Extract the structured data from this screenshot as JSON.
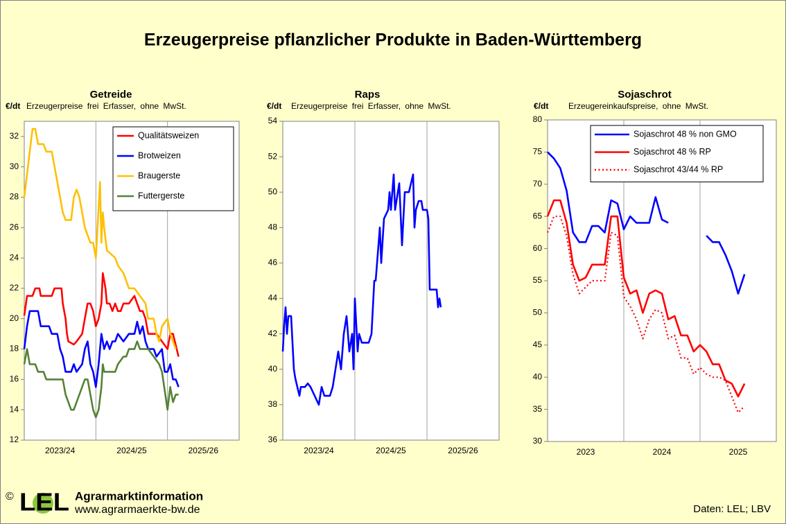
{
  "header": {
    "title": "Erzeugerpreise pflanzlicher Produkte in Baden-Württemberg"
  },
  "footer": {
    "copyright": "©",
    "logo": "LEL",
    "brand": "Agrarmarktinformation",
    "url": "www.agrarmaerkte-bw.de",
    "source": "Daten: LEL; LBV"
  },
  "chart_data": [
    {
      "type": "line",
      "title": "Getreide",
      "ylabel": "€/dt",
      "subtitle": "Erzeugerpreise frei Erfasser, ohne MwSt.",
      "xlim": [
        0,
        156
      ],
      "xticks": [
        {
          "value": 26,
          "label": "2023/24"
        },
        {
          "value": 78,
          "label": "2024/25"
        },
        {
          "value": 130,
          "label": "2025/26"
        }
      ],
      "xgrid": [
        52,
        104
      ],
      "ylim": [
        12,
        33
      ],
      "yticks": [
        12,
        14,
        16,
        18,
        20,
        22,
        24,
        26,
        28,
        30,
        32
      ],
      "legend": "upper right",
      "series": [
        {
          "name": "Qualitätsweizen",
          "color": "#ff0000",
          "x": [
            0,
            2,
            6,
            8,
            11,
            12,
            20,
            22,
            27,
            28,
            30,
            31,
            32,
            36,
            38,
            42,
            44,
            46,
            48,
            50,
            52,
            54,
            56,
            57,
            59,
            60,
            62,
            64,
            66,
            68,
            70,
            72,
            76,
            80,
            82,
            84,
            86,
            88,
            90,
            94,
            96,
            100,
            104,
            106,
            108,
            112
          ],
          "values": [
            20.2,
            21.5,
            21.5,
            22,
            22,
            21.5,
            21.5,
            22,
            22,
            21,
            20,
            19,
            18.5,
            18.3,
            18.5,
            19,
            20,
            21,
            21,
            20.5,
            19.5,
            20,
            21,
            23,
            22,
            21,
            21,
            20.5,
            21,
            20.5,
            20.5,
            21,
            21,
            21.5,
            21,
            20.5,
            20.5,
            20,
            19,
            19,
            19,
            18.5,
            18,
            19,
            19,
            17.5
          ]
        },
        {
          "name": "Brotweizen",
          "color": "#0000ff",
          "x": [
            0,
            2,
            4,
            10,
            12,
            18,
            20,
            24,
            26,
            28,
            30,
            34,
            36,
            38,
            42,
            44,
            46,
            48,
            50,
            52,
            54,
            56,
            58,
            60,
            62,
            64,
            66,
            68,
            72,
            76,
            80,
            82,
            84,
            86,
            88,
            90,
            94,
            96,
            100,
            102,
            104,
            106,
            108,
            110,
            112
          ],
          "values": [
            18,
            19.5,
            20.5,
            20.5,
            19.5,
            19.5,
            19,
            19,
            18,
            17.5,
            16.5,
            16.5,
            17,
            16.5,
            17,
            18,
            18.5,
            17,
            16.5,
            15.5,
            17,
            19,
            18,
            18.5,
            18,
            18.5,
            18.5,
            19,
            18.5,
            19,
            19,
            19.8,
            19,
            19.5,
            18.5,
            18,
            18,
            17.5,
            18,
            16.5,
            16.5,
            17,
            16,
            16,
            15.5
          ]
        },
        {
          "name": "Braugerste",
          "color": "#ffc000",
          "x": [
            0,
            2,
            4,
            6,
            8,
            10,
            14,
            16,
            20,
            22,
            24,
            26,
            28,
            30,
            34,
            36,
            38,
            40,
            42,
            44,
            46,
            48,
            50,
            52,
            55,
            56,
            57,
            58,
            60,
            66,
            68,
            72,
            76,
            80,
            84,
            88,
            90,
            94,
            96,
            98,
            100,
            104,
            106,
            108,
            110
          ],
          "values": [
            28,
            29.5,
            31,
            32.5,
            32.5,
            31.5,
            31.5,
            31,
            31,
            30,
            29,
            28,
            27,
            26.5,
            26.5,
            28,
            28.5,
            28,
            27,
            26,
            25.5,
            25,
            25,
            24,
            29,
            25,
            27,
            26,
            24.5,
            24,
            23.5,
            23,
            22,
            22,
            21.5,
            21,
            20,
            20,
            19,
            18.5,
            19.5,
            20,
            19,
            18.5,
            18
          ]
        },
        {
          "name": "Futtergerste",
          "color": "#548235",
          "x": [
            0,
            2,
            4,
            8,
            10,
            14,
            16,
            28,
            30,
            32,
            34,
            36,
            38,
            40,
            42,
            44,
            46,
            48,
            50,
            52,
            54,
            56,
            57,
            58,
            60,
            66,
            68,
            72,
            74,
            76,
            80,
            82,
            84,
            90,
            94,
            98,
            100,
            104,
            106,
            108,
            110,
            112
          ],
          "values": [
            17,
            18,
            17,
            17,
            16.5,
            16.5,
            16,
            16,
            15,
            14.5,
            14,
            14,
            14.5,
            15,
            15.5,
            16,
            16,
            15,
            14,
            13.5,
            14,
            15.5,
            17,
            16.5,
            16.5,
            16.5,
            17,
            17.5,
            17.5,
            18,
            18,
            18.5,
            18,
            18,
            17.5,
            17,
            16.5,
            14,
            15.5,
            14.5,
            15,
            15
          ]
        }
      ]
    },
    {
      "type": "line",
      "title": "Raps",
      "ylabel": "€/dt",
      "subtitle": "Erzeugerpreise frei Erfasser, ohne MwSt.",
      "xlim": [
        0,
        156
      ],
      "xticks": [
        {
          "value": 26,
          "label": "2023/24"
        },
        {
          "value": 78,
          "label": "2024/25"
        },
        {
          "value": 130,
          "label": "2025/26"
        }
      ],
      "xgrid": [
        52,
        104
      ],
      "ylim": [
        36,
        54
      ],
      "yticks": [
        36,
        38,
        40,
        42,
        44,
        46,
        48,
        50,
        52,
        54
      ],
      "series": [
        {
          "color": "#0000ff",
          "x": [
            0,
            1,
            2,
            3,
            4,
            6,
            8,
            9,
            12,
            13,
            16,
            18,
            20,
            26,
            28,
            30,
            34,
            36,
            38,
            40,
            42,
            44,
            46,
            48,
            50,
            51,
            52,
            54,
            55,
            57,
            62,
            64,
            66,
            67,
            70,
            71,
            73,
            76,
            77,
            78,
            80,
            81,
            84,
            86,
            88,
            91,
            94,
            95,
            96,
            98,
            100,
            101,
            104,
            105,
            106,
            111,
            112,
            113,
            114
          ],
          "values": [
            41,
            42.5,
            43.5,
            42,
            43,
            43,
            40,
            39.5,
            38.5,
            39,
            39,
            39.2,
            39,
            38,
            39,
            38.5,
            38.5,
            39,
            40,
            41,
            40,
            42,
            43,
            41,
            42,
            40,
            44,
            41,
            42,
            41.5,
            41.5,
            42,
            45,
            45,
            48,
            46,
            48.5,
            49,
            50,
            49,
            51,
            49,
            50.5,
            47,
            50,
            50,
            51,
            48,
            49,
            49.5,
            49.5,
            49,
            49,
            48.5,
            44.5,
            44.5,
            43.5,
            44,
            43.5
          ]
        }
      ]
    },
    {
      "type": "line",
      "title": "Sojaschrot",
      "ylabel": "€/dt",
      "subtitle": "Erzeugereinkaufspreise, ohne MwSt.",
      "xlim": [
        0,
        36
      ],
      "xticks": [
        {
          "value": 6,
          "label": "2023"
        },
        {
          "value": 18,
          "label": "2024"
        },
        {
          "value": 30,
          "label": "2025"
        }
      ],
      "xgrid": [
        12,
        24
      ],
      "ylim": [
        30,
        80
      ],
      "yticks": [
        30,
        35,
        40,
        45,
        50,
        55,
        60,
        65,
        70,
        75,
        80
      ],
      "legend": "upper left",
      "series": [
        {
          "name": "Sojaschrot 48 % non GMO",
          "color": "#0000ff",
          "x": [
            0,
            1,
            2,
            3,
            4,
            5,
            6,
            7,
            8,
            9,
            10,
            11,
            12,
            13,
            14,
            15,
            16,
            17,
            18,
            19,
            20,
            21,
            22,
            23,
            24,
            25,
            26,
            27,
            28,
            29,
            30,
            31
          ],
          "values": [
            75,
            74,
            72.5,
            69,
            62.5,
            61,
            61,
            63.5,
            63.5,
            62.5,
            67.5,
            67,
            63,
            65,
            64,
            64,
            64,
            68,
            64.5,
            64,
            null,
            null,
            null,
            null,
            null,
            62,
            61,
            61,
            59,
            56.5,
            53,
            56
          ]
        },
        {
          "name": "Sojaschrot 48 % RP",
          "color": "#ff0000",
          "x": [
            0,
            1,
            2,
            3,
            4,
            5,
            6,
            7,
            8,
            9,
            10,
            11,
            12,
            13,
            14,
            15,
            16,
            17,
            18,
            19,
            20,
            21,
            22,
            23,
            24,
            25,
            26,
            27,
            28,
            29,
            30,
            31
          ],
          "values": [
            65,
            67.5,
            67.5,
            64,
            57.5,
            55,
            55.5,
            57.5,
            57.5,
            57.5,
            65,
            65,
            55.5,
            53,
            53.5,
            50,
            53,
            53.5,
            53,
            49,
            49.5,
            46.5,
            46.5,
            44,
            45,
            44,
            42,
            42,
            39.5,
            39,
            37,
            39
          ]
        },
        {
          "name": "Sojaschrot 43/44 % RP",
          "color": "#ff0000",
          "linestyle": "dotted",
          "x": [
            0,
            1,
            2,
            3,
            4,
            5,
            6,
            7,
            8,
            9,
            10,
            11,
            12,
            13,
            14,
            15,
            16,
            17,
            18,
            19,
            20,
            21,
            22,
            23,
            24,
            25,
            26,
            27,
            28,
            29,
            30,
            31
          ],
          "values": [
            62.5,
            65,
            65,
            62,
            56,
            53,
            54,
            55,
            55,
            55,
            62.5,
            62,
            52.5,
            51,
            49,
            46,
            49,
            50.5,
            50,
            46,
            46.5,
            43,
            43,
            40.5,
            41.5,
            40.5,
            40,
            40,
            39.5,
            37,
            34.5,
            35.5
          ]
        }
      ]
    }
  ]
}
